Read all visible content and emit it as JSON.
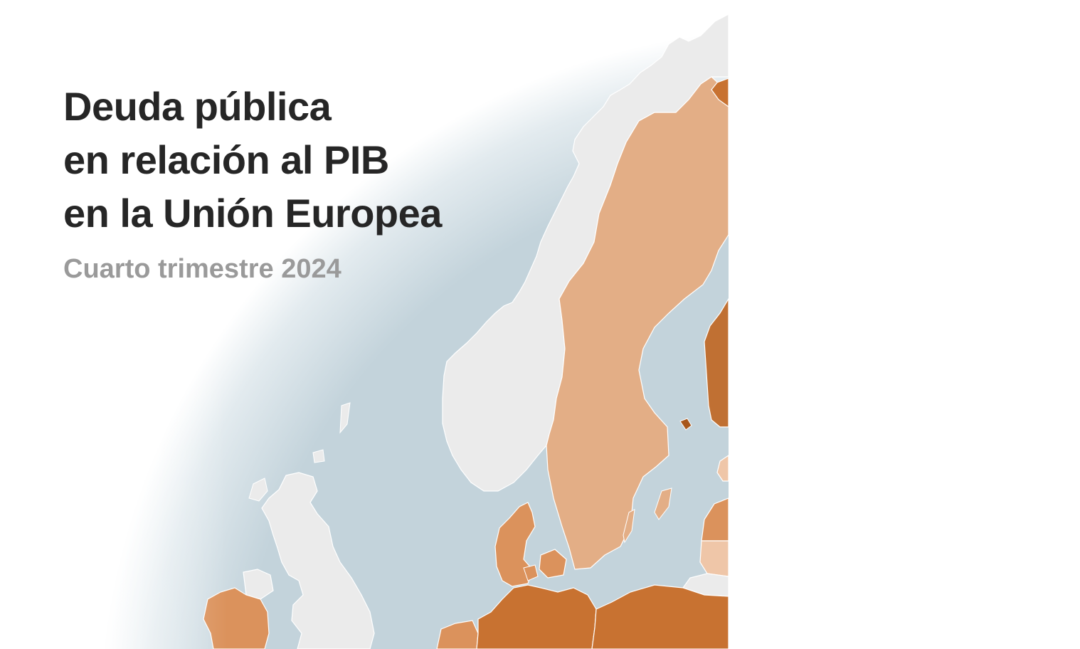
{
  "map": {
    "title_lines": [
      "Deuda pública",
      "en relación al PIB",
      "en la Unión Europea"
    ],
    "subtitle": "Cuarto trimestre 2024",
    "colors": {
      "sea": "#c3d3db",
      "non_eu_land": "#ebebeb",
      "border": "#ffffff",
      "debt_low": "#efc6a8",
      "debt_low_mid": "#e3ae86",
      "debt_mid": "#db925c",
      "debt_high": "#c87231",
      "debt_very_high": "#a8571c"
    },
    "regions": [
      {
        "name": "Norway",
        "eu_member": false
      },
      {
        "name": "United Kingdom",
        "eu_member": false
      },
      {
        "name": "Sweden",
        "eu_member": true,
        "shade": "debt_low_mid"
      },
      {
        "name": "Finland",
        "eu_member": true,
        "shade": "debt_high"
      },
      {
        "name": "Denmark",
        "eu_member": true,
        "shade": "debt_mid"
      },
      {
        "name": "Ireland",
        "eu_member": true,
        "shade": "debt_mid"
      },
      {
        "name": "Germany",
        "eu_member": true,
        "shade": "debt_high"
      },
      {
        "name": "Netherlands",
        "eu_member": true,
        "shade": "debt_mid"
      },
      {
        "name": "Poland",
        "eu_member": true,
        "shade": "debt_high"
      },
      {
        "name": "Estonia",
        "eu_member": true,
        "shade": "debt_low"
      },
      {
        "name": "Latvia",
        "eu_member": true,
        "shade": "debt_mid"
      },
      {
        "name": "Lithuania",
        "eu_member": true,
        "shade": "debt_low"
      }
    ]
  }
}
